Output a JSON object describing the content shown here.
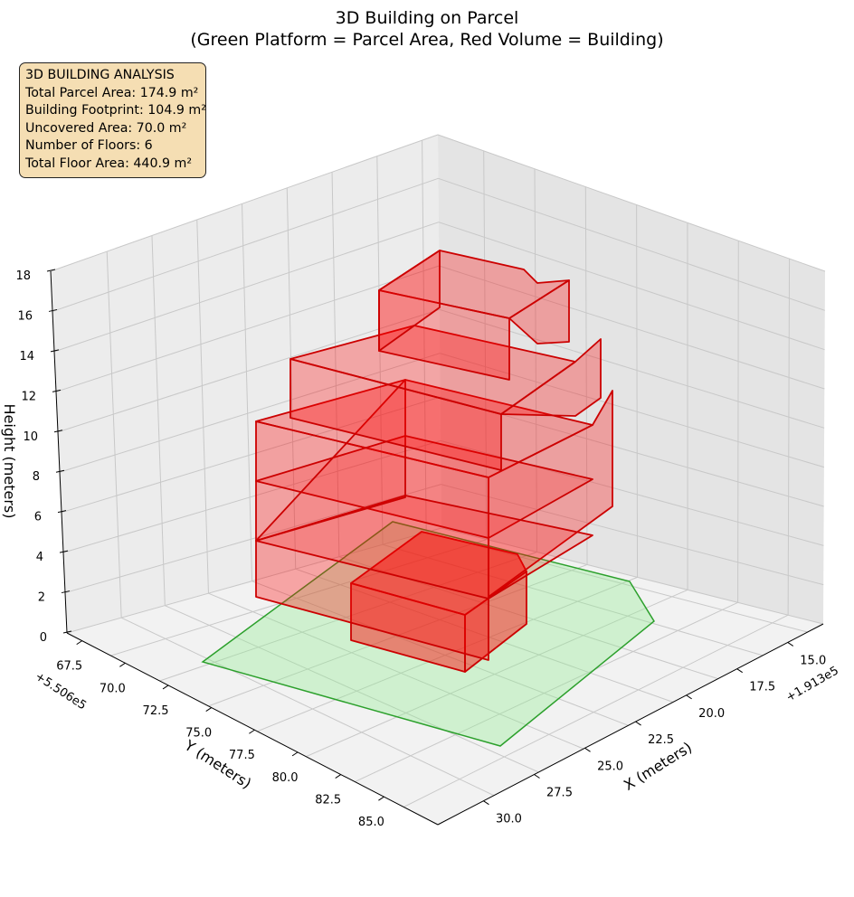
{
  "chart_data": {
    "type": "3d-polygons",
    "title": [
      "3D Building on Parcel",
      "(Green Platform = Parcel Area, Red Volume = Building)"
    ],
    "xlabel": "X (meters)",
    "ylabel": "Y (meters)",
    "zlabel": "Height (meters)",
    "x_offset_label": "+1.913e5",
    "y_offset_label": "+5.506e5",
    "x_ticks": [
      "15.0",
      "17.5",
      "20.0",
      "22.5",
      "25.0",
      "27.5",
      "30.0"
    ],
    "y_ticks": [
      "67.5",
      "70.0",
      "72.5",
      "75.0",
      "77.5",
      "80.0",
      "82.5",
      "85.0"
    ],
    "z_ticks": [
      "0",
      "2",
      "4",
      "6",
      "8",
      "10",
      "12",
      "14",
      "16",
      "18"
    ],
    "parcel_color": "#2ca02c",
    "parcel_fill": "#90ee90",
    "building_color": "#ff0000",
    "building_edge": "#cc0000",
    "info_box": {
      "lines": [
        "3D BUILDING ANALYSIS",
        "Total Parcel Area: 174.9 m²",
        "Building Footprint: 104.9 m²",
        "Uncovered Area: 70.0 m²",
        "Number of Floors: 6",
        "Total Floor Area: 440.9 m²"
      ],
      "background": "#f5deb3"
    }
  }
}
